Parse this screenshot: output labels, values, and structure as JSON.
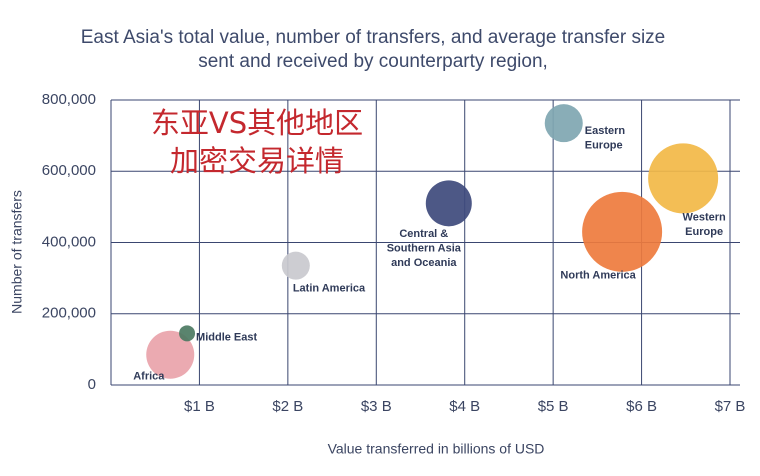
{
  "chart_data": {
    "type": "scatter",
    "title": [
      "East Asia's total value, number of transfers, and average transfer size",
      "sent and received by counterparty region,"
    ],
    "x_label": "Value transferred in billions of USD",
    "y_label": "Number of transfers",
    "annotations": [
      "东亚VS其他地区",
      "加密交易详情"
    ],
    "xlim": [
      0,
      7
    ],
    "ylim": [
      0,
      800000
    ],
    "xticks": [
      {
        "value": 1,
        "label": "$1 B"
      },
      {
        "value": 2,
        "label": "$2 B"
      },
      {
        "value": 3,
        "label": "$3 B"
      },
      {
        "value": 4,
        "label": "$4 B"
      },
      {
        "value": 5,
        "label": "$5 B"
      },
      {
        "value": 6,
        "label": "$6 B"
      },
      {
        "value": 7,
        "label": "$7 B"
      }
    ],
    "yticks": [
      0,
      {
        "value": 200000,
        "label": "200,000"
      },
      {
        "value": 400000,
        "label": "400,000"
      },
      {
        "value": 600000,
        "label": "600,000"
      },
      {
        "value": 800000,
        "label": "800,000"
      }
    ],
    "grid": true,
    "points": [
      {
        "label": [
          "Africa"
        ],
        "x": 0.67,
        "y": 85000,
        "size": 24,
        "color": "#e9a3aa"
      },
      {
        "label": [
          "Middle East"
        ],
        "x": 0.86,
        "y": 145000,
        "size": 8,
        "color": "#4c7a62"
      },
      {
        "label": [
          "Latin America"
        ],
        "x": 2.09,
        "y": 335000,
        "size": 14,
        "color": "#c9c9ce"
      },
      {
        "label": [
          "Central &",
          "Southern Asia",
          "and Oceania"
        ],
        "x": 3.82,
        "y": 510000,
        "size": 23,
        "color": "#3e4a7c"
      },
      {
        "label": [
          "Eastern",
          "Europe"
        ],
        "x": 5.12,
        "y": 735000,
        "size": 19,
        "color": "#7fa6b1"
      },
      {
        "label": [
          "North America"
        ],
        "x": 5.78,
        "y": 430000,
        "size": 40,
        "color": "#ee7b3d"
      },
      {
        "label": [
          "Western",
          "Europe"
        ],
        "x": 6.47,
        "y": 580000,
        "size": 35,
        "color": "#f2b946"
      }
    ]
  }
}
